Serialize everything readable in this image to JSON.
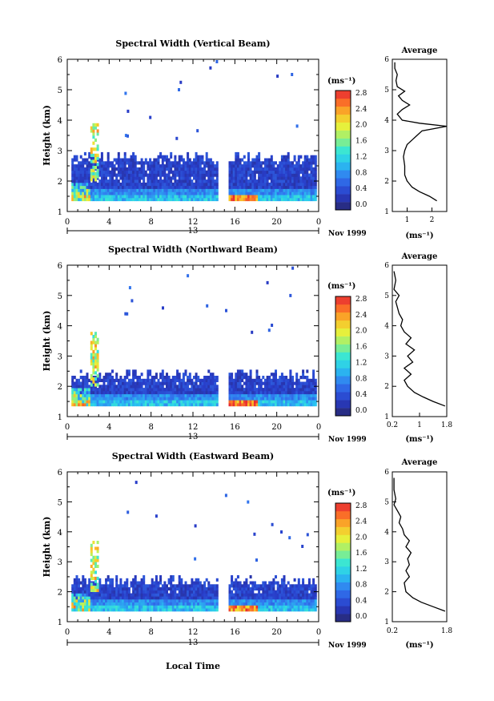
{
  "chart_data": [
    {
      "type": "heatmap",
      "title": "Spectral Width (Vertical Beam)",
      "ylabel": "Height (km)",
      "x_ticks": [
        "0",
        "4",
        "8",
        "12",
        "16",
        "20",
        "0"
      ],
      "xlim": [
        0,
        24
      ],
      "y_ticks": [
        "1",
        "2",
        "3",
        "4",
        "5",
        "6"
      ],
      "ylim": [
        1,
        6
      ],
      "date_day": "13",
      "date_month": "Nov 1999",
      "colorbar": {
        "unit": "(ms⁻¹)",
        "ticks": [
          "2.8",
          "2.4",
          "2.0",
          "1.6",
          "1.2",
          "0.8",
          "0.4",
          "0.0"
        ],
        "range": [
          0,
          3.0
        ]
      },
      "average": {
        "title": "Average",
        "xlabel": "(ms⁻¹)",
        "x_ticks": [
          "1",
          "2"
        ],
        "xlim": [
          0.4,
          2.6
        ],
        "y_ticks": [
          "1",
          "2",
          "3",
          "4",
          "5",
          "6"
        ],
        "profile": [
          [
            2.2,
            1.35
          ],
          [
            1.9,
            1.5
          ],
          [
            1.5,
            1.65
          ],
          [
            1.2,
            1.8
          ],
          [
            1.0,
            2.0
          ],
          [
            0.9,
            2.2
          ],
          [
            0.9,
            2.5
          ],
          [
            0.85,
            2.8
          ],
          [
            0.9,
            3.0
          ],
          [
            1.0,
            3.2
          ],
          [
            1.2,
            3.35
          ],
          [
            1.4,
            3.5
          ],
          [
            1.6,
            3.65
          ],
          [
            2.6,
            3.8
          ],
          [
            1.5,
            3.9
          ],
          [
            0.8,
            4.0
          ],
          [
            0.6,
            4.2
          ],
          [
            0.8,
            4.35
          ],
          [
            1.1,
            4.5
          ],
          [
            0.8,
            4.65
          ],
          [
            0.65,
            4.8
          ],
          [
            0.9,
            4.95
          ],
          [
            0.6,
            5.1
          ],
          [
            0.55,
            5.3
          ],
          [
            0.6,
            5.5
          ],
          [
            0.5,
            5.7
          ],
          [
            0.5,
            5.9
          ]
        ]
      }
    },
    {
      "type": "heatmap",
      "title": "Spectral Width (Northward Beam)",
      "ylabel": "Height (km)",
      "x_ticks": [
        "0",
        "4",
        "8",
        "12",
        "16",
        "20",
        "0"
      ],
      "xlim": [
        0,
        24
      ],
      "y_ticks": [
        "1",
        "2",
        "3",
        "4",
        "5",
        "6"
      ],
      "ylim": [
        1,
        6
      ],
      "date_day": "13",
      "date_month": "Nov 1999",
      "colorbar": {
        "unit": "(ms⁻¹)",
        "ticks": [
          "2.8",
          "2.4",
          "2.0",
          "1.6",
          "1.2",
          "0.8",
          "0.4",
          "0.0"
        ],
        "range": [
          0,
          3.0
        ]
      },
      "average": {
        "title": "Average",
        "xlabel": "(ms⁻¹)",
        "x_ticks": [
          "0.2",
          "1",
          "1.8"
        ],
        "xlim": [
          0.2,
          1.8
        ],
        "y_ticks": [
          "1",
          "2",
          "3",
          "4",
          "5",
          "6"
        ],
        "profile": [
          [
            1.75,
            1.35
          ],
          [
            1.4,
            1.5
          ],
          [
            1.1,
            1.65
          ],
          [
            0.85,
            1.8
          ],
          [
            0.65,
            2.0
          ],
          [
            0.55,
            2.2
          ],
          [
            0.75,
            2.4
          ],
          [
            0.55,
            2.6
          ],
          [
            0.8,
            2.8
          ],
          [
            0.65,
            3.0
          ],
          [
            0.85,
            3.2
          ],
          [
            0.6,
            3.4
          ],
          [
            0.75,
            3.6
          ],
          [
            0.55,
            3.8
          ],
          [
            0.45,
            4.0
          ],
          [
            0.5,
            4.2
          ],
          [
            0.4,
            4.4
          ],
          [
            0.35,
            4.6
          ],
          [
            0.3,
            4.8
          ],
          [
            0.4,
            5.0
          ],
          [
            0.25,
            5.2
          ],
          [
            0.3,
            5.5
          ],
          [
            0.25,
            5.8
          ]
        ]
      }
    },
    {
      "type": "heatmap",
      "title": "Spectral Width (Eastward Beam)",
      "ylabel": "Height (km)",
      "xlabel": "Local Time",
      "x_ticks": [
        "0",
        "4",
        "8",
        "12",
        "16",
        "20",
        "0"
      ],
      "xlim": [
        0,
        24
      ],
      "y_ticks": [
        "1",
        "2",
        "3",
        "4",
        "5",
        "6"
      ],
      "ylim": [
        1,
        6
      ],
      "date_day": "13",
      "date_month": "Nov 1999",
      "colorbar": {
        "unit": "(ms⁻¹)",
        "ticks": [
          "2.8",
          "2.4",
          "2.0",
          "1.6",
          "1.2",
          "0.8",
          "0.4",
          "0.0"
        ],
        "range": [
          0,
          3.0
        ]
      },
      "average": {
        "title": "Average",
        "xlabel": "(ms⁻¹)",
        "x_ticks": [
          "0.2",
          "1.8"
        ],
        "xlim": [
          0.2,
          1.8
        ],
        "y_ticks": [
          "1",
          "2",
          "3",
          "4",
          "5",
          "6"
        ],
        "profile": [
          [
            1.75,
            1.35
          ],
          [
            1.4,
            1.5
          ],
          [
            1.05,
            1.65
          ],
          [
            0.8,
            1.8
          ],
          [
            0.6,
            2.0
          ],
          [
            0.55,
            2.3
          ],
          [
            0.7,
            2.5
          ],
          [
            0.6,
            2.7
          ],
          [
            0.7,
            2.9
          ],
          [
            0.65,
            3.1
          ],
          [
            0.75,
            3.3
          ],
          [
            0.6,
            3.5
          ],
          [
            0.7,
            3.7
          ],
          [
            0.55,
            3.9
          ],
          [
            0.5,
            4.1
          ],
          [
            0.4,
            4.3
          ],
          [
            0.45,
            4.5
          ],
          [
            0.35,
            4.7
          ],
          [
            0.25,
            4.9
          ],
          [
            0.3,
            5.1
          ],
          [
            0.25,
            5.4
          ],
          [
            0.25,
            5.8
          ]
        ]
      }
    }
  ]
}
